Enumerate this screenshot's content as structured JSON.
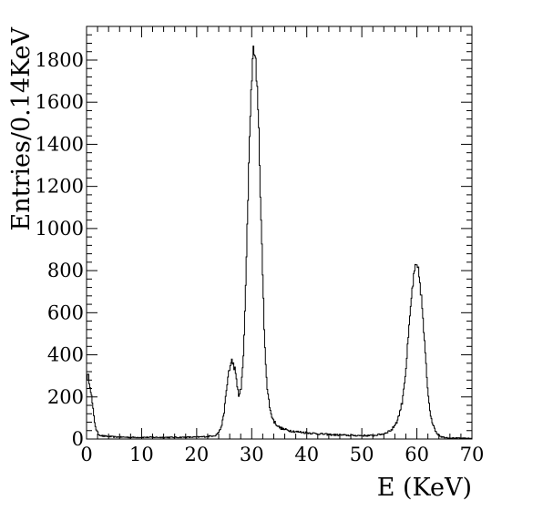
{
  "chart_data": {
    "type": "histogram",
    "xlabel": "E (KeV)",
    "ylabel": "Entries/0.14KeV",
    "xlim": [
      0,
      70
    ],
    "ylim": [
      0,
      1960
    ],
    "grid": false,
    "legend": "none",
    "line_color": "#000000",
    "x_ticks": [
      0,
      10,
      20,
      30,
      40,
      50,
      60,
      70
    ],
    "y_ticks": [
      0,
      200,
      400,
      600,
      800,
      1000,
      1200,
      1400,
      1600,
      1800
    ],
    "bin_width": 0.14,
    "profile": [
      [
        0,
        290
      ],
      [
        0.3,
        300
      ],
      [
        0.7,
        250
      ],
      [
        1.0,
        180
      ],
      [
        1.4,
        90
      ],
      [
        1.8,
        40
      ],
      [
        2.2,
        22
      ],
      [
        3,
        14
      ],
      [
        5,
        10
      ],
      [
        8,
        8
      ],
      [
        12,
        8
      ],
      [
        16,
        8
      ],
      [
        20,
        9
      ],
      [
        22,
        12
      ],
      [
        23.5,
        18
      ],
      [
        24.2,
        40
      ],
      [
        24.8,
        90
      ],
      [
        25.3,
        200
      ],
      [
        25.8,
        320
      ],
      [
        26.4,
        370
      ],
      [
        26.9,
        340
      ],
      [
        27.3,
        260
      ],
      [
        27.7,
        205
      ],
      [
        28.1,
        240
      ],
      [
        28.6,
        450
      ],
      [
        29.1,
        900
      ],
      [
        29.6,
        1450
      ],
      [
        30.1,
        1780
      ],
      [
        30.4,
        1860
      ],
      [
        30.8,
        1780
      ],
      [
        31.3,
        1450
      ],
      [
        31.8,
        950
      ],
      [
        32.3,
        500
      ],
      [
        32.8,
        240
      ],
      [
        33.4,
        130
      ],
      [
        34.0,
        85
      ],
      [
        35,
        55
      ],
      [
        36,
        45
      ],
      [
        38,
        35
      ],
      [
        40,
        30
      ],
      [
        42,
        25
      ],
      [
        45,
        20
      ],
      [
        48,
        17
      ],
      [
        52,
        16
      ],
      [
        54,
        25
      ],
      [
        55.5,
        45
      ],
      [
        56.5,
        90
      ],
      [
        57.3,
        170
      ],
      [
        58.0,
        330
      ],
      [
        58.6,
        530
      ],
      [
        59.1,
        700
      ],
      [
        59.6,
        800
      ],
      [
        60.0,
        820
      ],
      [
        60.4,
        780
      ],
      [
        60.9,
        650
      ],
      [
        61.4,
        450
      ],
      [
        61.9,
        260
      ],
      [
        62.4,
        130
      ],
      [
        63.0,
        60
      ],
      [
        63.7,
        25
      ],
      [
        64.5,
        10
      ],
      [
        66,
        5
      ],
      [
        70,
        3
      ]
    ]
  }
}
